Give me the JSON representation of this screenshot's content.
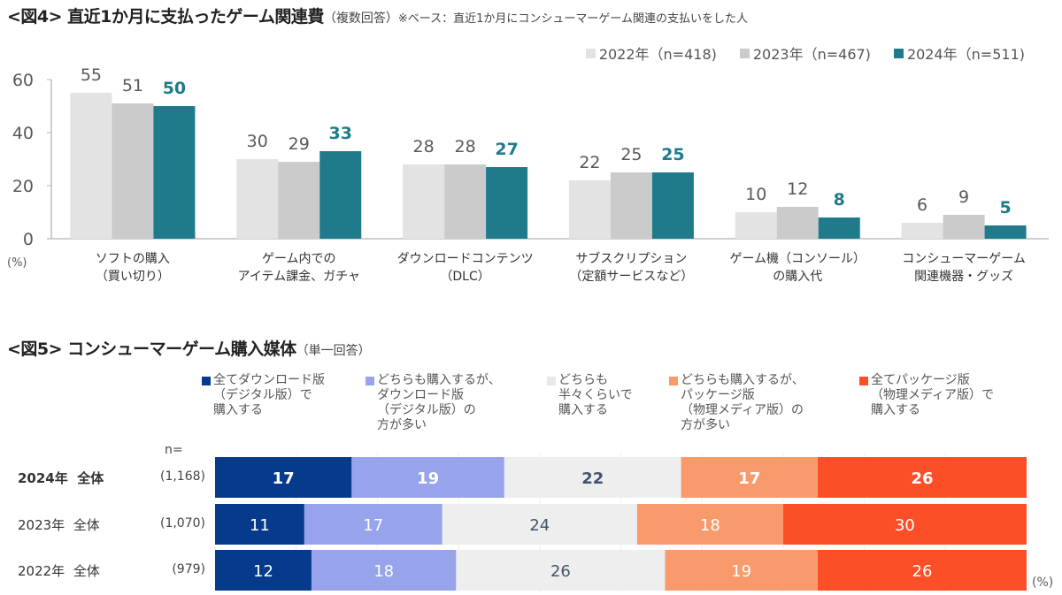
{
  "fig4": {
    "title_main": "<図4> 直近1か月に支払ったゲーム関連費",
    "title_sub": "（複数回答）",
    "title_note": "※ベース：直近1か月にコンシューマーゲーム関連の支払いをした人",
    "unit_label": "(%)",
    "legend": [
      {
        "label": "2022年（n=418)",
        "color": "#e3e3e3"
      },
      {
        "label": "2023年（n=467)",
        "color": "#cbcbcb"
      },
      {
        "label": "2024年（n=511)",
        "color": "#1f7a8c"
      }
    ]
  },
  "fig5": {
    "title_main": "<図5> コンシューマーゲーム購入媒体",
    "title_sub": "（単一回答）",
    "n_header": "n=",
    "unit_label": "(%)",
    "legend": [
      {
        "label": "全てダウンロード版\n（デジタル版）で\n購入する",
        "color": "#063b8c"
      },
      {
        "label": "どちらも購入するが、\nダウンロード版\n（デジタル版）の\n方が多い",
        "color": "#97a4ec"
      },
      {
        "label": "どちらも\n半々くらいで\n購入する",
        "color": "#eeeeee"
      },
      {
        "label": "どちらも購入するが、\nパッケージ版\n（物理メディア版）の\n方が多い",
        "color": "#f99a6c"
      },
      {
        "label": "全てパッケージ版\n（物理メディア版）で\n購入する",
        "color": "#fc4f27"
      }
    ],
    "rows": [
      {
        "label": "2024年  全体",
        "n": "(1,168)",
        "bold": true
      },
      {
        "label": "2023年  全体",
        "n": "(1,070)",
        "bold": false
      },
      {
        "label": "2022年  全体",
        "n": "(979)",
        "bold": false
      }
    ]
  },
  "chart_data": [
    {
      "type": "bar",
      "title": "<図4> 直近1か月に支払ったゲーム関連費（複数回答）",
      "subtitle": "※ベース：直近1か月にコンシューマーゲーム関連の支払いをした人",
      "categories": [
        "ソフトの購入\n（買い切り）",
        "ゲーム内での\nアイテム課金、ガチャ",
        "ダウンロードコンテンツ\n（DLC）",
        "サブスクリプション\n（定額サービスなど）",
        "ゲーム機（コンソール）\nの購入代",
        "コンシューマーゲーム\n関連機器・グッズ"
      ],
      "series": [
        {
          "name": "2022年（n=418)",
          "values": [
            55,
            30,
            28,
            22,
            10,
            6
          ]
        },
        {
          "name": "2023年（n=467)",
          "values": [
            51,
            29,
            28,
            25,
            12,
            9
          ]
        },
        {
          "name": "2024年（n=511)",
          "values": [
            50,
            33,
            27,
            25,
            8,
            5
          ]
        }
      ],
      "xlabel": "",
      "ylabel": "(%)",
      "ylim": [
        0,
        60
      ],
      "yticks": [
        0,
        20,
        40,
        60
      ],
      "grid": false,
      "legend_position": "top-right"
    },
    {
      "type": "bar",
      "orientation": "horizontal-stacked-100",
      "title": "<図5> コンシューマーゲーム購入媒体（単一回答）",
      "categories": [
        "2024年 全体 (1,168)",
        "2023年 全体 (1,070)",
        "2022年 全体 (979)"
      ],
      "series": [
        {
          "name": "全てダウンロード版（デジタル版）で購入する",
          "values": [
            17,
            11,
            12
          ]
        },
        {
          "name": "どちらも購入するが、ダウンロード版（デジタル版）の方が多い",
          "values": [
            19,
            17,
            18
          ]
        },
        {
          "name": "どちらも半々くらいで購入する",
          "values": [
            22,
            24,
            26
          ]
        },
        {
          "name": "どちらも購入するが、パッケージ版（物理メディア版）の方が多い",
          "values": [
            17,
            18,
            19
          ]
        },
        {
          "name": "全てパッケージ版（物理メディア版）で購入する",
          "values": [
            26,
            30,
            26
          ]
        }
      ],
      "xlim": [
        0,
        100
      ],
      "unit": "(%)",
      "legend_position": "top"
    }
  ]
}
